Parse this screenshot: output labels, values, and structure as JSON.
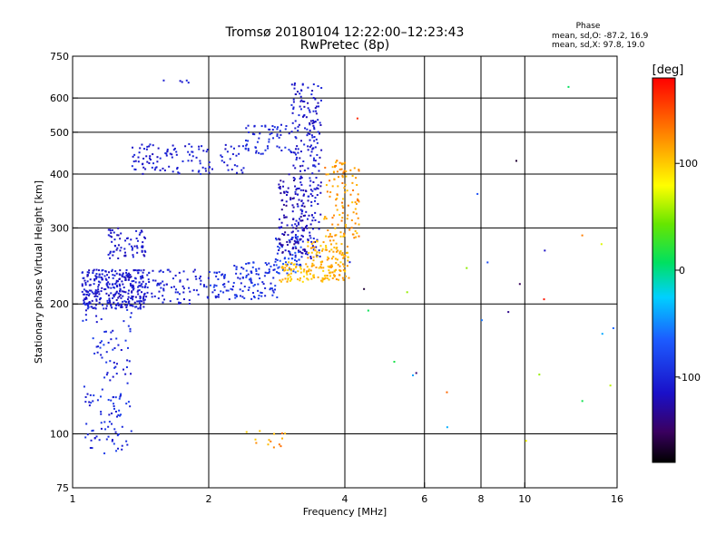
{
  "header": {
    "title": "Tromsø 20180104 12:22:00–12:23:43",
    "subtitle": "RwPretec (8p)"
  },
  "stats": {
    "label": "Phase",
    "line_o": "mean, sd,O: -87.2, 16.9",
    "line_x": "mean, sd,X: 97.8, 19.0"
  },
  "colorbar": {
    "unit": "[deg]",
    "range": [
      -180,
      180
    ],
    "ticks": [
      {
        "value": 100,
        "label": "100"
      },
      {
        "value": 0,
        "label": "0"
      },
      {
        "value": -100,
        "label": "-100"
      }
    ]
  },
  "chart_data": {
    "type": "scatter",
    "title": "Tromsø 20180104 12:22:00–12:23:43",
    "subtitle": "RwPretec (8p)",
    "xlabel": "Frequency [MHz]",
    "ylabel": "Stationary phase Virtual Height [km]",
    "xscale": "log",
    "yscale": "log",
    "xlim": [
      1,
      16
    ],
    "ylim": [
      75,
      750
    ],
    "xticks": [
      1,
      2,
      4,
      6,
      8,
      10,
      16
    ],
    "yticks": [
      75,
      100,
      200,
      300,
      400,
      500,
      600,
      750
    ],
    "x_gridlines": [
      2,
      4,
      6,
      8,
      10
    ],
    "y_gridlines": [
      100,
      200,
      300,
      400,
      500,
      600
    ],
    "color_by": "phase [deg]",
    "point_groups": [
      {
        "x": [
          1.05,
          1.45
        ],
        "y": [
          195,
          240
        ],
        "phase": [
          -125,
          -95
        ],
        "count": 320
      },
      {
        "x": [
          1.2,
          1.45
        ],
        "y": [
          255,
          300
        ],
        "phase": [
          -125,
          -100
        ],
        "count": 70
      },
      {
        "x": [
          1.05,
          1.35
        ],
        "y": [
          90,
          200
        ],
        "phase": [
          -115,
          -80
        ],
        "count": 140
      },
      {
        "x": [
          1.4,
          2.0
        ],
        "y": [
          200,
          240
        ],
        "phase": [
          -115,
          -95
        ],
        "count": 90
      },
      {
        "x": [
          2.0,
          2.85
        ],
        "y": [
          205,
          250
        ],
        "phase": [
          -110,
          -80
        ],
        "count": 130
      },
      {
        "x": [
          2.8,
          3.2
        ],
        "y": [
          235,
          290
        ],
        "phase": [
          -95,
          -60
        ],
        "count": 60
      },
      {
        "x": [
          2.85,
          3.3
        ],
        "y": [
          260,
          400
        ],
        "phase": [
          -140,
          -110
        ],
        "count": 110
      },
      {
        "x": [
          3.05,
          3.55
        ],
        "y": [
          250,
          650
        ],
        "phase": [
          -125,
          -95
        ],
        "count": 240
      },
      {
        "x": [
          2.85,
          3.3
        ],
        "y": [
          225,
          250
        ],
        "phase": [
          90,
          120
        ],
        "count": 50
      },
      {
        "x": [
          3.3,
          4.1
        ],
        "y": [
          225,
          280
        ],
        "phase": [
          95,
          125
        ],
        "count": 140
      },
      {
        "x": [
          3.6,
          4.3
        ],
        "y": [
          280,
          430
        ],
        "phase": [
          100,
          135
        ],
        "count": 120
      },
      {
        "x": [
          1.35,
          2.4
        ],
        "y": [
          400,
          470
        ],
        "phase": [
          -120,
          -95
        ],
        "count": 120
      },
      {
        "x": [
          2.4,
          3.1
        ],
        "y": [
          445,
          520
        ],
        "phase": [
          -110,
          -90
        ],
        "count": 60
      },
      {
        "x": [
          1.55,
          1.9
        ],
        "y": [
          650,
          660
        ],
        "phase": [
          -115,
          -100
        ],
        "count": 5
      },
      {
        "x": [
          2.3,
          3.0
        ],
        "y": [
          93,
          102
        ],
        "phase": [
          100,
          140
        ],
        "count": 14
      },
      {
        "x": [
          4.0,
          16.0
        ],
        "y": [
          95,
          640
        ],
        "phase": [
          -180,
          180
        ],
        "count": 28
      }
    ]
  }
}
